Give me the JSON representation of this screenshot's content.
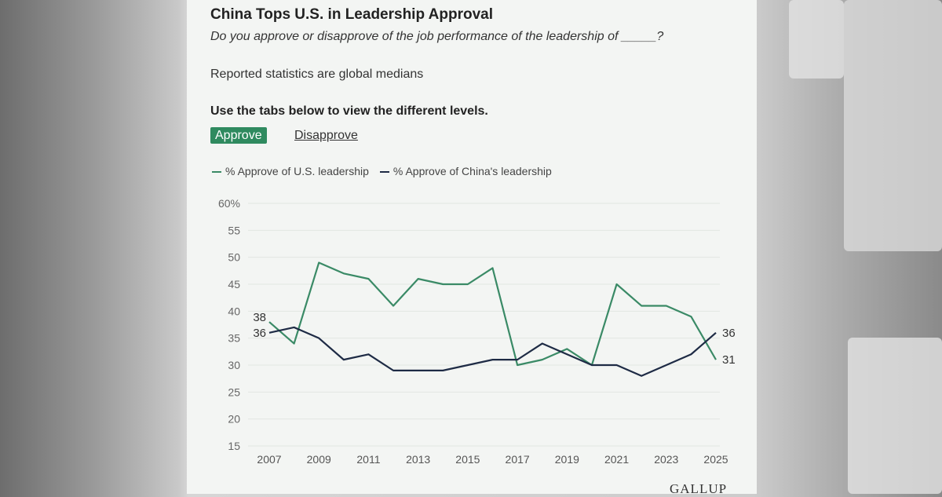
{
  "header": {
    "title": "China Tops U.S. in Leadership Approval",
    "question": "Do you approve or disapprove of the job performance of the leadership of _____?",
    "note": "Reported statistics are global medians",
    "instruction": "Use the tabs below to view the different levels."
  },
  "tabs": [
    {
      "label": "Approve",
      "active": true
    },
    {
      "label": "Disapprove",
      "active": false
    }
  ],
  "logo": "GALLUP",
  "colors": {
    "us": "#3a8a66",
    "china": "#1e2b45",
    "tab_active": "#2f8a5f"
  },
  "chart_data": {
    "type": "line",
    "x": [
      2007,
      2008,
      2009,
      2010,
      2011,
      2012,
      2013,
      2014,
      2015,
      2016,
      2017,
      2018,
      2019,
      2020,
      2021,
      2022,
      2023,
      2024,
      2025
    ],
    "x_ticks": [
      "2007",
      "2009",
      "2011",
      "2013",
      "2015",
      "2017",
      "2019",
      "2021",
      "2023",
      "2025"
    ],
    "y_ticks": [
      "60%",
      "55",
      "50",
      "45",
      "40",
      "35",
      "30",
      "25",
      "20",
      "15"
    ],
    "ylim": [
      15,
      60
    ],
    "grid": true,
    "legend": "top-left",
    "series": [
      {
        "name": "% Approve of U.S. leadership",
        "values": [
          38,
          34,
          49,
          47,
          46,
          41,
          46,
          45,
          45,
          48,
          30,
          31,
          33,
          30,
          45,
          41,
          41,
          39,
          31
        ],
        "start_label": "38",
        "end_label": "31"
      },
      {
        "name": "% Approve of China's leadership",
        "values": [
          36,
          37,
          35,
          31,
          32,
          29,
          29,
          29,
          30,
          31,
          31,
          34,
          32,
          30,
          30,
          28,
          30,
          32,
          36
        ],
        "start_label": "36",
        "end_label": "36"
      }
    ]
  }
}
